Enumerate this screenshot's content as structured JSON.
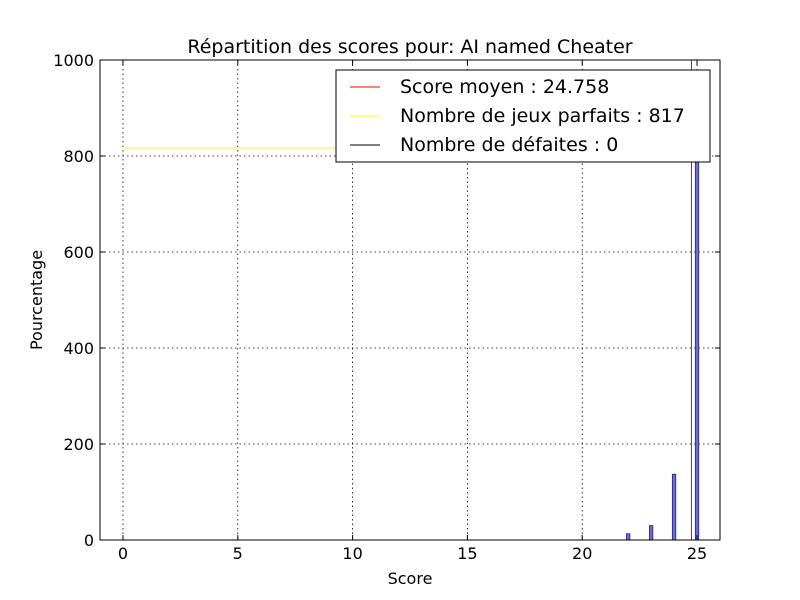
{
  "chart_data": {
    "type": "bar",
    "title": "Répartition des scores pour: AI named Cheater",
    "xlabel": "Score",
    "ylabel": "Pourcentage",
    "xlim": [
      -1,
      26
    ],
    "ylim": [
      0,
      1000
    ],
    "x_ticks": [
      0,
      5,
      10,
      15,
      20,
      25
    ],
    "y_ticks": [
      0,
      200,
      400,
      600,
      800,
      1000
    ],
    "grid": true,
    "legend_placement": "top-right",
    "bar_color": "#6b6fcf",
    "bars": [
      {
        "x": 22,
        "value": 13
      },
      {
        "x": 23,
        "value": 30
      },
      {
        "x": 24,
        "value": 137
      },
      {
        "x": 25,
        "value": 817
      }
    ],
    "lines": [
      {
        "kind": "vertical",
        "x": 24.758,
        "color": "#ff0000",
        "label": "Score moyen : 24.758"
      },
      {
        "kind": "horizontal",
        "y": 817,
        "x_from": 0,
        "x_to": 25,
        "color": "#ffff00",
        "label": "Nombre de jeux parfaits : 817"
      },
      {
        "kind": "horizontal",
        "y": 0,
        "x_from": 0,
        "x_to": 25,
        "color": "#000000",
        "label": "Nombre de défaites : 0"
      }
    ]
  }
}
